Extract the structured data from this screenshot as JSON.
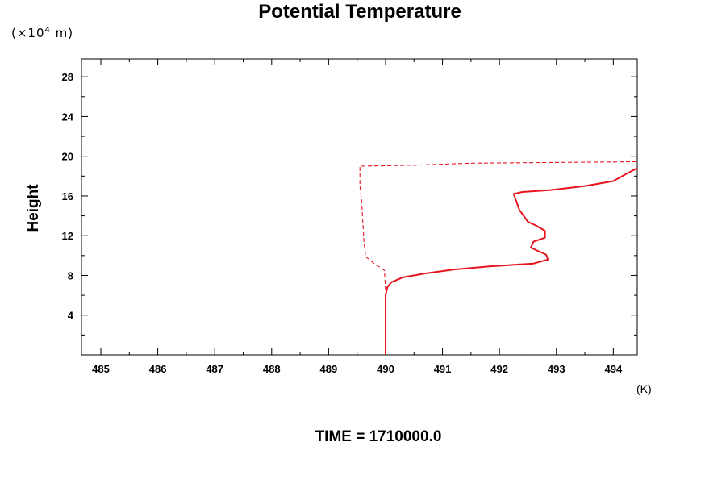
{
  "chart_data": {
    "type": "line",
    "title": "Potential Temperature",
    "ylabel": "Height",
    "y_unit_prefix": "(×10",
    "y_unit_exp": "4",
    "y_unit_suffix": " m)",
    "x_unit": "(K)",
    "footer": "TIME = 1710000.0",
    "xlim": [
      484.66,
      494.42
    ],
    "ylim": [
      0,
      29.8
    ],
    "x_ticks": [
      485,
      486,
      487,
      488,
      489,
      490,
      491,
      492,
      493,
      494
    ],
    "x_tick_labels": [
      "485",
      "486",
      "487",
      "488",
      "489",
      "490",
      "491",
      "492",
      "493",
      "494"
    ],
    "y_ticks": [
      4,
      8,
      12,
      16,
      20,
      24,
      28
    ],
    "y_tick_labels": [
      "4",
      "8",
      "12",
      "16",
      "20",
      "24",
      "28"
    ],
    "grid": false,
    "line_color": "#e8141e",
    "series": [
      {
        "style": "solid",
        "points": [
          [
            490.0,
            0.0
          ],
          [
            490.0,
            4.0
          ],
          [
            490.0,
            6.0
          ],
          [
            490.03,
            6.8
          ],
          [
            490.1,
            7.3
          ],
          [
            490.3,
            7.8
          ],
          [
            490.7,
            8.2
          ],
          [
            491.2,
            8.6
          ],
          [
            491.8,
            8.9
          ],
          [
            492.6,
            9.2
          ],
          [
            492.85,
            9.6
          ],
          [
            492.82,
            10.1
          ],
          [
            492.55,
            10.8
          ],
          [
            492.6,
            11.4
          ],
          [
            492.8,
            11.8
          ],
          [
            492.8,
            12.5
          ],
          [
            492.65,
            13.0
          ],
          [
            492.5,
            13.4
          ],
          [
            492.35,
            14.6
          ],
          [
            492.25,
            16.2
          ],
          [
            492.4,
            16.4
          ],
          [
            492.9,
            16.6
          ],
          [
            493.5,
            17.0
          ],
          [
            494.0,
            17.5
          ],
          [
            494.25,
            18.3
          ],
          [
            494.42,
            18.8
          ]
        ]
      },
      {
        "style": "dashed",
        "points": [
          [
            490.0,
            0.0
          ],
          [
            490.0,
            6.5
          ],
          [
            489.98,
            8.5
          ],
          [
            489.8,
            9.2
          ],
          [
            489.65,
            9.9
          ],
          [
            489.62,
            11.5
          ],
          [
            489.58,
            15.5
          ],
          [
            489.55,
            17.0
          ],
          [
            489.55,
            19.0
          ],
          [
            490.5,
            19.1
          ],
          [
            491.5,
            19.3
          ],
          [
            492.5,
            19.35
          ],
          [
            494.42,
            19.45
          ]
        ]
      }
    ]
  }
}
